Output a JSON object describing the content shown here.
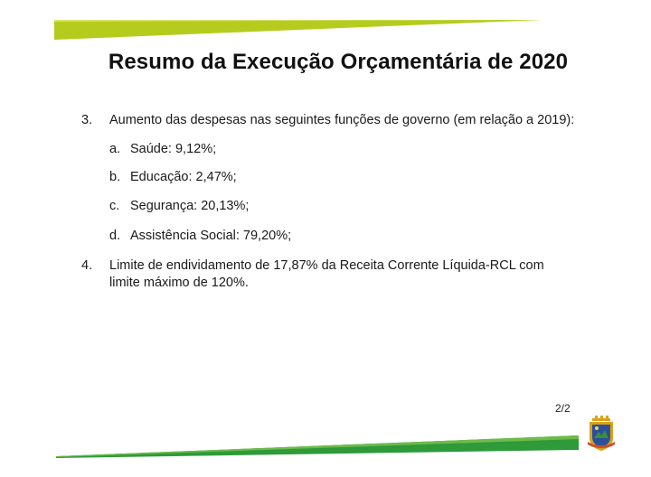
{
  "slide": {
    "title": "Resumo da Execução Orçamentária de 2020",
    "items": [
      {
        "number": "3.",
        "text": "Aumento das despesas nas seguintes funções de governo (em relação a 2019):",
        "subitems": [
          {
            "letter": "a.",
            "text": "Saúde: 9,12%;"
          },
          {
            "letter": "b.",
            "text": "Educação: 2,47%;"
          },
          {
            "letter": "c.",
            "text": "Segurança: 20,13%;"
          },
          {
            "letter": "d.",
            "text": "Assistência Social: 79,20%;"
          }
        ]
      },
      {
        "number": "4.",
        "text_line1": "Limite de endividamento de 17,87% da Receita Corrente Líquida-RCL com",
        "text_line2": "limite máximo de 120%."
      }
    ],
    "page_number": "2/2"
  },
  "colors": {
    "accent_lime": "#b5cc1f",
    "accent_green": "#2e9a3a",
    "seal_gold": "#d9a21a",
    "seal_blue": "#2c4f9c"
  },
  "icons": {
    "seal": "municipal-coat-of-arms-icon"
  }
}
